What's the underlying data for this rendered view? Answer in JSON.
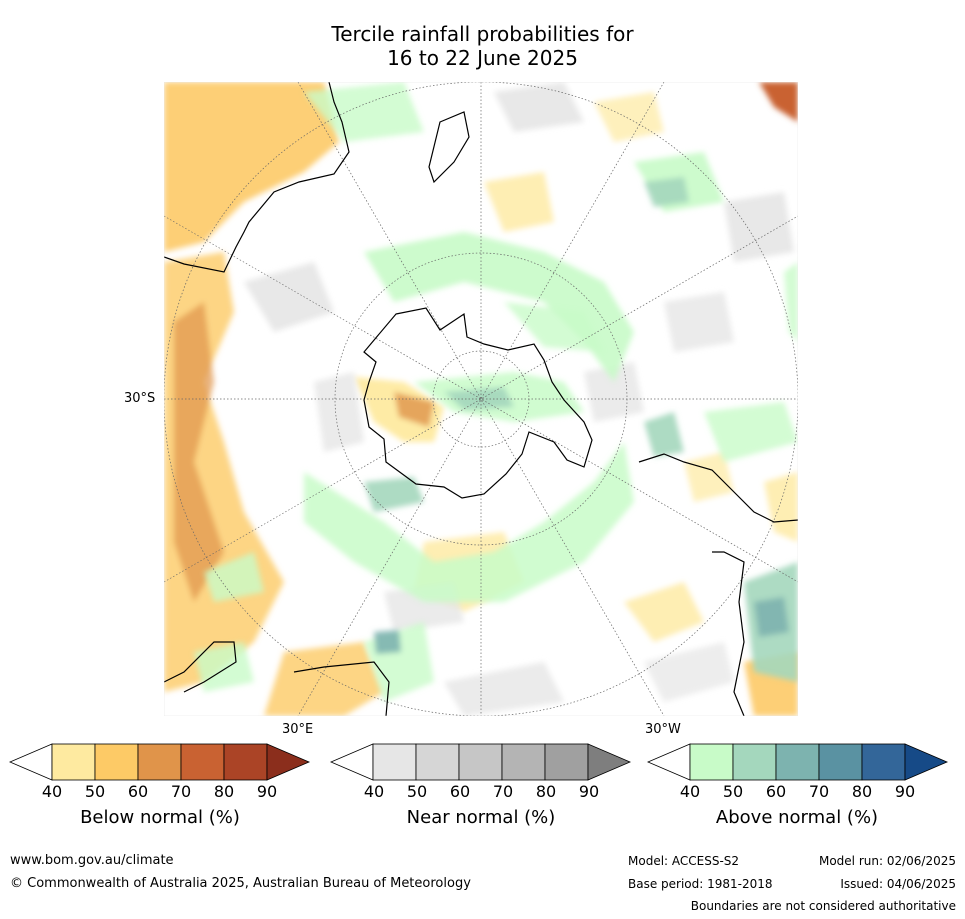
{
  "title": {
    "line1": "Tercile rainfall probabilities for",
    "line2": "16 to 22 June 2025"
  },
  "map": {
    "projection": "south-polar stereographic",
    "lat_label": "30°S",
    "lon_labels": [
      "30°E",
      "30°W"
    ],
    "regions": [
      {
        "name": "australia",
        "category": "below",
        "level": 50
      },
      {
        "name": "southern-ocean-indian",
        "category": "below",
        "level": 40
      },
      {
        "name": "antarctica-east",
        "category": "below",
        "level": 60
      },
      {
        "name": "southern-ring",
        "category": "above",
        "level": 40
      },
      {
        "name": "south-america",
        "category": "above",
        "level": 50
      },
      {
        "name": "scattered-near",
        "category": "near",
        "level": 40
      }
    ]
  },
  "legends": [
    {
      "name": "below",
      "label": "Below normal (%)",
      "ticks": [
        "40",
        "50",
        "60",
        "70",
        "80",
        "90"
      ],
      "colors": [
        "#ffffff",
        "#feeaa0",
        "#fdca66",
        "#e0944a",
        "#c96232",
        "#ab4426",
        "#8b2e1c"
      ]
    },
    {
      "name": "near",
      "label": "Near normal (%)",
      "ticks": [
        "40",
        "50",
        "60",
        "70",
        "80",
        "90"
      ],
      "colors": [
        "#ffffff",
        "#e6e6e6",
        "#d6d6d6",
        "#c6c6c6",
        "#b4b4b4",
        "#a0a0a0",
        "#7e7e7e"
      ]
    },
    {
      "name": "above",
      "label": "Above normal (%)",
      "ticks": [
        "40",
        "50",
        "60",
        "70",
        "80",
        "90"
      ],
      "colors": [
        "#ffffff",
        "#c8fbc8",
        "#a4d7bd",
        "#7db3af",
        "#5a92a2",
        "#336699",
        "#164a87"
      ]
    }
  ],
  "footer": {
    "website": "www.bom.gov.au/climate",
    "copyright": "© Commonwealth of Australia 2025, Australian Bureau of Meteorology",
    "model": "Model: ACCESS-S2",
    "model_run": "Model run: 02/06/2025",
    "base_period": "Base period: 1981-2018",
    "issued": "Issued: 04/06/2025",
    "disclaimer": "Boundaries are not considered authoritative"
  }
}
